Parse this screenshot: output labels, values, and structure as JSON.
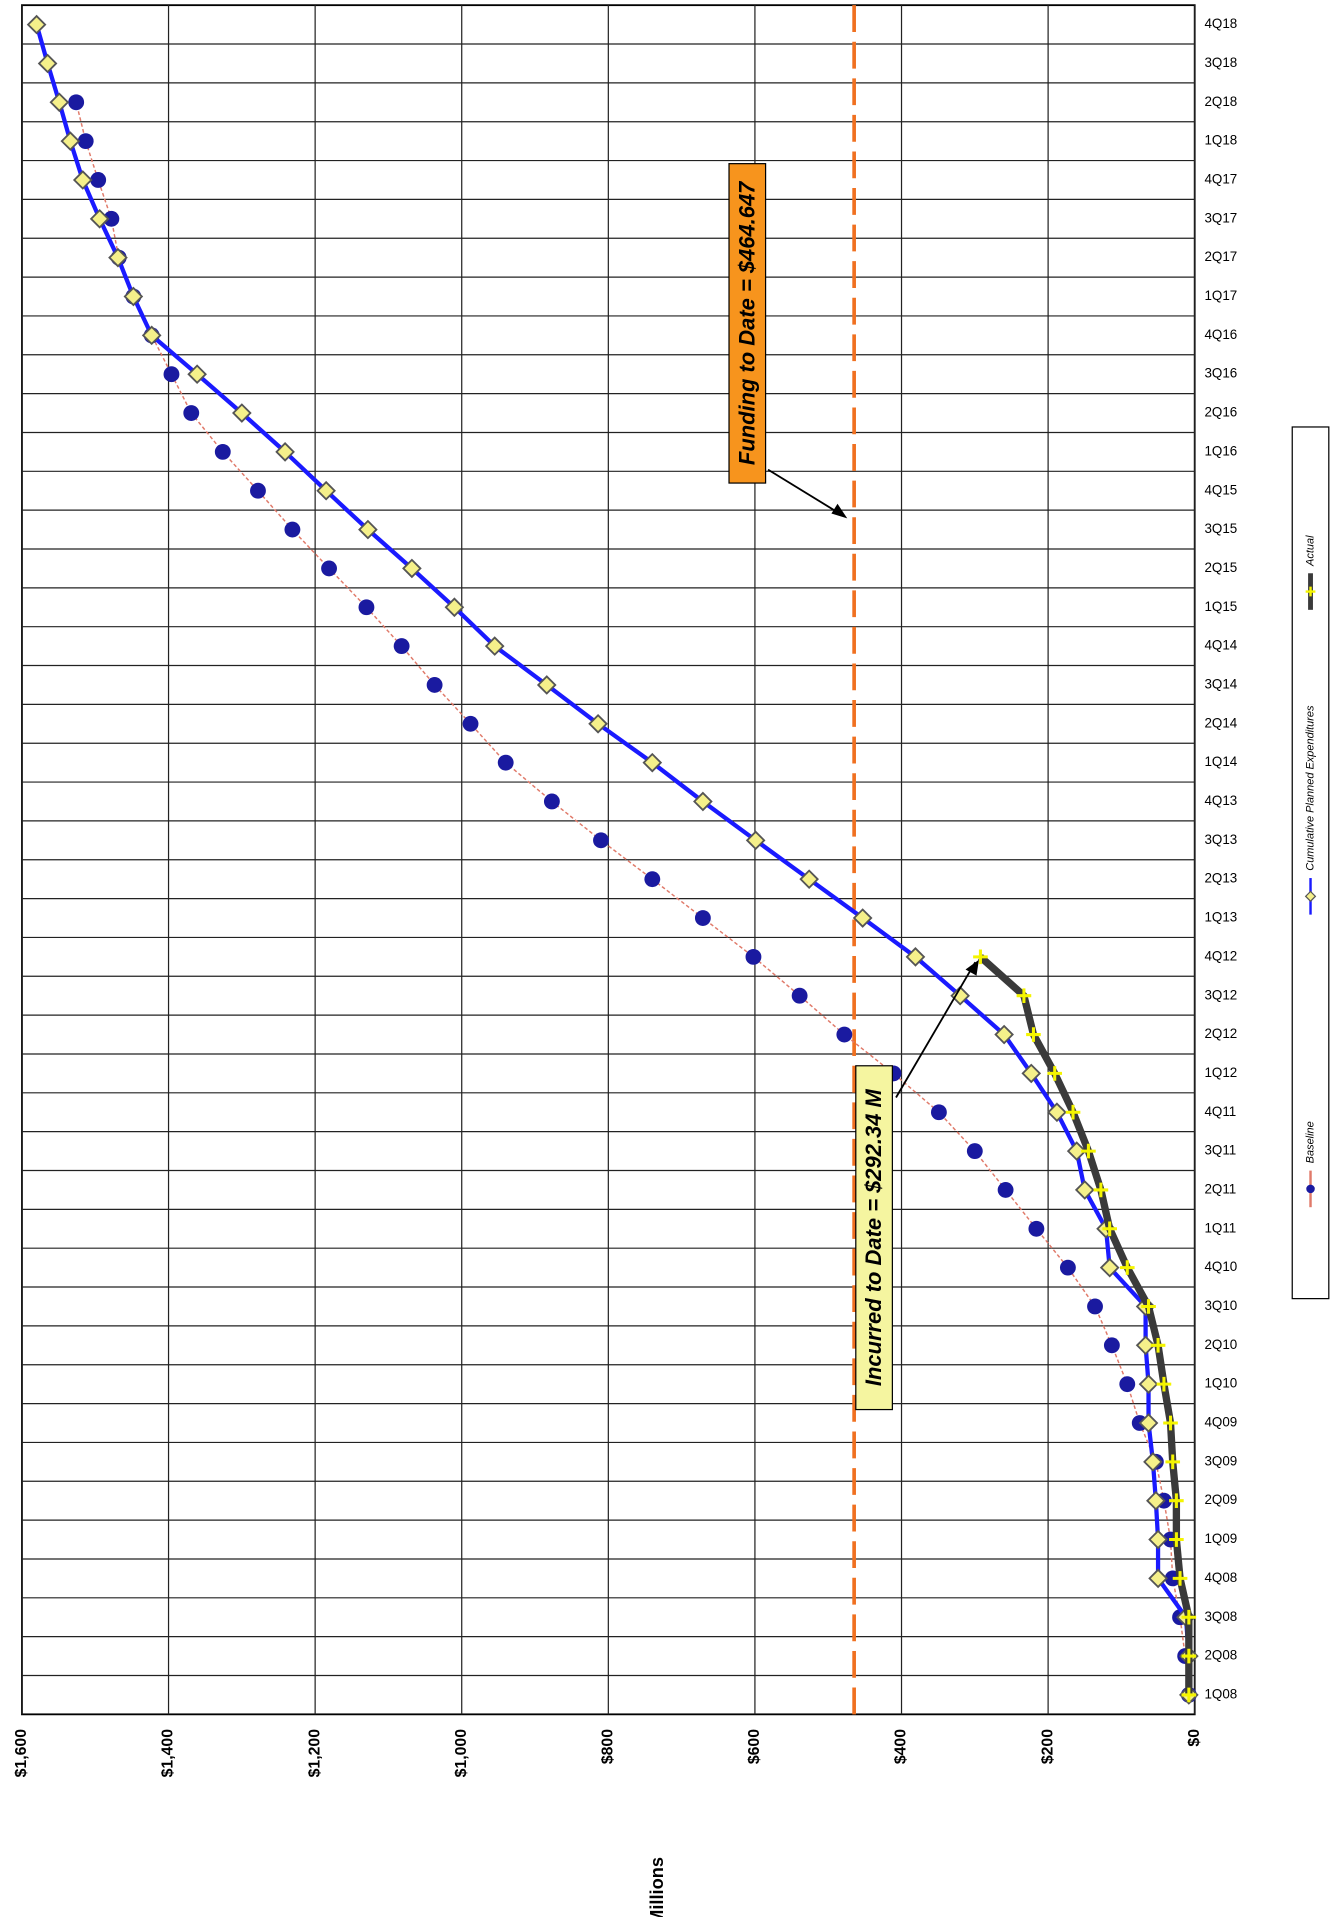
{
  "chart_data": {
    "type": "line",
    "y_label": "$Millions",
    "categories": [
      "1Q08",
      "2Q08",
      "3Q08",
      "4Q08",
      "1Q09",
      "2Q09",
      "3Q09",
      "4Q09",
      "1Q10",
      "2Q10",
      "3Q10",
      "4Q10",
      "1Q11",
      "2Q11",
      "3Q11",
      "4Q11",
      "1Q12",
      "2Q12",
      "3Q12",
      "4Q12",
      "1Q13",
      "2Q13",
      "3Q13",
      "4Q13",
      "1Q14",
      "2Q14",
      "3Q14",
      "4Q14",
      "1Q15",
      "2Q15",
      "3Q15",
      "4Q15",
      "1Q16",
      "2Q16",
      "3Q16",
      "4Q16",
      "1Q17",
      "2Q17",
      "3Q17",
      "4Q17",
      "1Q18",
      "2Q18",
      "3Q18",
      "4Q18"
    ],
    "series": [
      {
        "name": "Baseline",
        "color": "#1a1aa0",
        "line_color": "#e07a6a",
        "marker": "circle",
        "values": [
          8,
          13,
          20,
          30,
          33,
          42,
          53,
          75,
          92,
          113,
          136,
          173,
          216,
          258,
          300,
          349,
          411,
          478,
          539,
          602,
          671,
          740,
          810,
          877,
          940,
          988,
          1037,
          1082,
          1130,
          1181,
          1231,
          1278,
          1326,
          1369,
          1396,
          1423,
          1448,
          1468,
          1478,
          1496,
          1513,
          1526,
          null,
          null
        ]
      },
      {
        "name": "Cumulative Planned Expenditures",
        "color": "#1a1aff",
        "marker_color": "#f5f08a",
        "marker": "diamond",
        "values": [
          8,
          8,
          12,
          50,
          50,
          53,
          57,
          63,
          63,
          67,
          67,
          116,
          121,
          150,
          161,
          188,
          223,
          260,
          320,
          381,
          453,
          526,
          599,
          671,
          740,
          814,
          884,
          955,
          1010,
          1068,
          1128,
          1185,
          1241,
          1300,
          1361,
          1423,
          1448,
          1469,
          1494,
          1517,
          1534,
          1549,
          1565,
          1580
        ]
      },
      {
        "name": "Actual",
        "color": "#3a3a3a",
        "marker_color": "#f5f500",
        "marker": "cross",
        "values": [
          8,
          8,
          8,
          20,
          25,
          25,
          30,
          33,
          42,
          50,
          63,
          92,
          116,
          128,
          145,
          166,
          191,
          220,
          233,
          292.34,
          null,
          null,
          null,
          null,
          null,
          null,
          null,
          null,
          null,
          null,
          null,
          null,
          null,
          null,
          null,
          null,
          null,
          null,
          null,
          null,
          null,
          null,
          null,
          null
        ]
      }
    ],
    "ylim": [
      0,
      1600
    ],
    "yticks": [
      {
        "value": 0,
        "label": "$0"
      },
      {
        "value": 200,
        "label": "$200"
      },
      {
        "value": 400,
        "label": "$400"
      },
      {
        "value": 600,
        "label": "$600"
      },
      {
        "value": 800,
        "label": "$800"
      },
      {
        "value": 1000,
        "label": "$1,000"
      },
      {
        "value": 1200,
        "label": "$1,200"
      },
      {
        "value": 1400,
        "label": "$1,400"
      },
      {
        "value": 1600,
        "label": "$1,600"
      }
    ],
    "grid": true,
    "funding_line": {
      "value": 464.647,
      "color": "#f07020",
      "label": "Funding to Date = $464.647"
    },
    "incurred_annotation": "Incurred to Date = $292.34 M"
  }
}
